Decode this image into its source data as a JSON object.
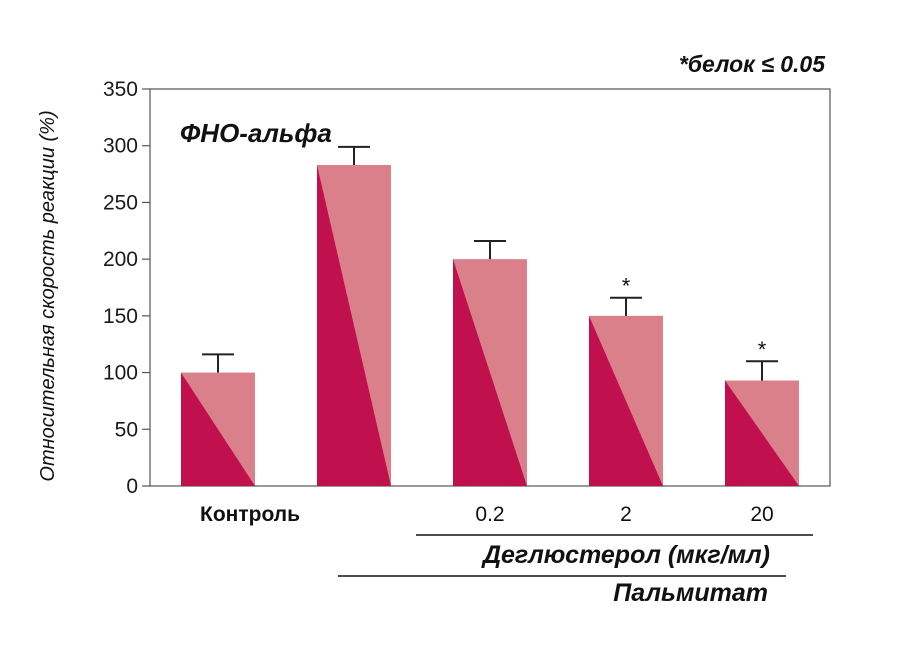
{
  "chart_data": {
    "type": "bar",
    "title": "ФНО-альфа",
    "ylabel": "Относительная скорость реакции (%)",
    "ylim": [
      0,
      350
    ],
    "yticks": [
      0,
      50,
      100,
      150,
      200,
      250,
      300,
      350
    ],
    "categories": [
      "Контроль",
      "",
      "0.2",
      "2",
      "20"
    ],
    "values": [
      100,
      283,
      200,
      150,
      93
    ],
    "errors": [
      16,
      16,
      16,
      16,
      17
    ],
    "significance": [
      "",
      "",
      "",
      "*",
      "*"
    ],
    "note": "*белок ≤ 0.05",
    "group_labels": [
      {
        "label": "Деглюстерол (мкг/мл)",
        "from": 2,
        "to": 4
      },
      {
        "label": "Пальмитат",
        "from": 1,
        "to": 4
      }
    ],
    "colors": {
      "bar_light": "#d9808a",
      "bar_dark": "#c0114e",
      "axis": "#555555",
      "errorbar": "#222222"
    }
  }
}
